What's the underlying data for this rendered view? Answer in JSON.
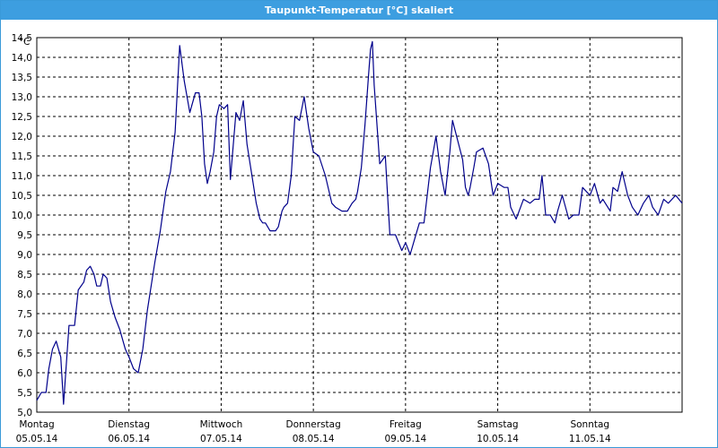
{
  "window": {
    "title": "Taupunkt-Temperatur [°C] skaliert"
  },
  "chart_data": {
    "type": "line",
    "title": "Taupunkt-Temperatur [°C] skaliert",
    "ylabel": "°C",
    "xlabel": "",
    "ylim": [
      5.0,
      14.5
    ],
    "xlim": [
      0,
      7
    ],
    "grid": true,
    "line_color": "#00008b",
    "y_ticks": [
      "5,0",
      "5,5",
      "6,0",
      "6,5",
      "7,0",
      "7,5",
      "8,0",
      "8,5",
      "9,0",
      "9,5",
      "10,0",
      "10,5",
      "11,0",
      "11,5",
      "12,0",
      "12,5",
      "13,0",
      "13,5",
      "14,0",
      "14,5"
    ],
    "days": [
      {
        "name": "Montag",
        "date": "05.05.14"
      },
      {
        "name": "Dienstag",
        "date": "06.05.14"
      },
      {
        "name": "Mittwoch",
        "date": "07.05.14"
      },
      {
        "name": "Donnerstag",
        "date": "08.05.14"
      },
      {
        "name": "Freitag",
        "date": "09.05.14"
      },
      {
        "name": "Samstag",
        "date": "10.05.14"
      },
      {
        "name": "Sonntag",
        "date": "11.05.14"
      }
    ],
    "series": [
      {
        "x_unit": "days since Montag 05.05.14 00:00",
        "x": [
          0.0,
          0.05,
          0.1,
          0.13,
          0.17,
          0.21,
          0.26,
          0.29,
          0.35,
          0.41,
          0.45,
          0.51,
          0.54,
          0.58,
          0.62,
          0.65,
          0.69,
          0.72,
          0.76,
          0.8,
          0.85,
          0.9,
          0.96,
          1.0,
          1.05,
          1.1,
          1.15,
          1.2,
          1.24,
          1.28,
          1.34,
          1.4,
          1.45,
          1.5,
          1.55,
          1.6,
          1.66,
          1.72,
          1.76,
          1.79,
          1.82,
          1.85,
          1.88,
          1.92,
          1.95,
          1.98,
          2.03,
          2.07,
          2.1,
          2.16,
          2.2,
          2.24,
          2.28,
          2.34,
          2.38,
          2.42,
          2.45,
          2.48,
          2.53,
          2.58,
          2.59,
          2.62,
          2.66,
          2.68,
          2.72,
          2.76,
          2.8,
          2.85,
          2.9,
          2.95,
          3.0,
          3.06,
          3.13,
          3.2,
          3.24,
          3.31,
          3.37,
          3.42,
          3.46,
          3.48,
          3.52,
          3.56,
          3.6,
          3.62,
          3.64,
          3.66,
          3.72,
          3.78,
          3.83,
          3.89,
          3.96,
          4.0,
          4.05,
          4.1,
          4.15,
          4.2,
          4.27,
          4.33,
          4.38,
          4.43,
          4.48,
          4.51,
          4.62,
          4.65,
          4.68,
          4.7,
          4.74,
          4.77,
          4.84,
          4.9,
          4.95,
          5.0,
          5.07,
          5.11,
          5.14,
          5.2,
          5.28,
          5.35,
          5.4,
          5.45,
          5.48,
          5.52,
          5.57,
          5.62,
          5.65,
          5.7,
          5.77,
          5.82,
          5.88,
          5.92,
          6.0,
          6.05,
          6.11,
          6.14,
          6.22,
          6.25,
          6.3,
          6.35,
          6.41,
          6.46,
          6.52,
          6.58,
          6.64,
          6.68,
          6.74,
          6.8,
          6.85,
          6.93,
          7.0
        ],
        "y": [
          5.3,
          5.5,
          5.5,
          6.1,
          6.6,
          6.8,
          6.4,
          5.2,
          7.2,
          7.2,
          8.1,
          8.3,
          8.6,
          8.7,
          8.5,
          8.2,
          8.2,
          8.5,
          8.4,
          7.8,
          7.4,
          7.1,
          6.6,
          6.4,
          6.1,
          6.0,
          6.6,
          7.6,
          8.2,
          8.8,
          9.6,
          10.6,
          11.1,
          12.1,
          14.3,
          13.4,
          12.6,
          13.1,
          13.1,
          12.5,
          11.3,
          10.8,
          11.1,
          11.6,
          12.5,
          12.8,
          12.7,
          12.8,
          10.9,
          12.6,
          12.4,
          12.9,
          11.8,
          10.9,
          10.3,
          9.9,
          9.8,
          9.8,
          9.6,
          9.6,
          9.6,
          9.7,
          10.1,
          10.2,
          10.3,
          11.0,
          12.5,
          12.4,
          13.0,
          12.2,
          11.6,
          11.5,
          11.0,
          10.3,
          10.2,
          10.1,
          10.1,
          10.3,
          10.4,
          10.6,
          11.2,
          12.3,
          13.6,
          14.2,
          14.4,
          13.3,
          11.3,
          11.5,
          9.5,
          9.5,
          9.1,
          9.3,
          9.0,
          9.4,
          9.8,
          9.8,
          11.2,
          12.0,
          11.1,
          10.5,
          11.6,
          12.4,
          11.4,
          10.7,
          10.5,
          10.7,
          11.2,
          11.6,
          11.7,
          11.3,
          10.5,
          10.8,
          10.7,
          10.7,
          10.2,
          9.9,
          10.4,
          10.3,
          10.4,
          10.4,
          11.0,
          10.0,
          10.0,
          9.8,
          10.1,
          10.5,
          9.9,
          10.0,
          10.0,
          10.7,
          10.5,
          10.8,
          10.3,
          10.4,
          10.1,
          10.7,
          10.6,
          11.1,
          10.5,
          10.2,
          10.0,
          10.3,
          10.5,
          10.2,
          10.0,
          10.4,
          10.3,
          10.5,
          10.3
        ]
      }
    ]
  }
}
